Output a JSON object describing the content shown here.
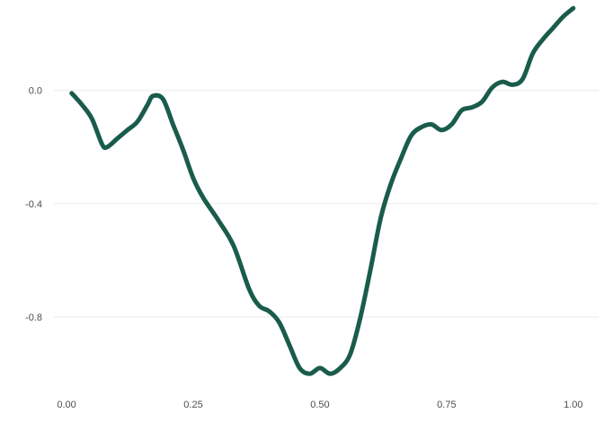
{
  "chart_data": {
    "type": "line",
    "title": "",
    "xlabel": "",
    "ylabel": "",
    "xlim": [
      -0.025,
      1.05
    ],
    "ylim": [
      -1.05,
      0.3
    ],
    "grid": "horizontal-major",
    "x_ticks": [
      0.0,
      0.25,
      0.5,
      0.75,
      1.0
    ],
    "x_tick_labels": [
      "0.00",
      "0.25",
      "0.50",
      "0.75",
      "1.00"
    ],
    "y_ticks": [
      0.0,
      -0.4,
      -0.8
    ],
    "y_tick_labels": [
      "0.0",
      "-0.4",
      "-0.8"
    ],
    "series": [
      {
        "color": "#1a5c4b",
        "x": [
          0.01,
          0.03,
          0.05,
          0.07,
          0.08,
          0.1,
          0.12,
          0.14,
          0.16,
          0.17,
          0.19,
          0.21,
          0.23,
          0.25,
          0.27,
          0.3,
          0.33,
          0.36,
          0.38,
          0.4,
          0.42,
          0.44,
          0.46,
          0.48,
          0.5,
          0.52,
          0.54,
          0.56,
          0.58,
          0.6,
          0.62,
          0.64,
          0.66,
          0.68,
          0.7,
          0.72,
          0.74,
          0.76,
          0.78,
          0.8,
          0.82,
          0.84,
          0.86,
          0.88,
          0.9,
          0.92,
          0.94,
          0.96,
          0.98,
          1.0
        ],
        "y": [
          -0.01,
          -0.05,
          -0.1,
          -0.19,
          -0.2,
          -0.17,
          -0.14,
          -0.11,
          -0.05,
          -0.02,
          -0.03,
          -0.12,
          -0.21,
          -0.31,
          -0.38,
          -0.46,
          -0.55,
          -0.7,
          -0.76,
          -0.78,
          -0.82,
          -0.9,
          -0.98,
          -1.0,
          -0.98,
          -1.0,
          -0.98,
          -0.93,
          -0.8,
          -0.63,
          -0.45,
          -0.33,
          -0.24,
          -0.16,
          -0.13,
          -0.12,
          -0.14,
          -0.12,
          -0.07,
          -0.06,
          -0.04,
          0.01,
          0.03,
          0.02,
          0.04,
          0.13,
          0.18,
          0.22,
          0.26,
          0.29
        ]
      }
    ]
  }
}
